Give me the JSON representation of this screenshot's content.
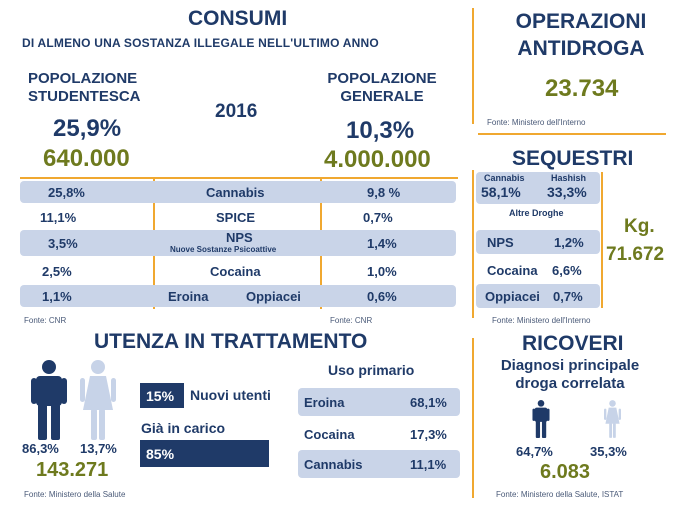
{
  "consumi": {
    "title": "CONSUMI",
    "subtitle": "DI ALMENO UNA SOSTANZA ILLEGALE NELL'ULTIMO ANNO",
    "year": "2016",
    "studenti": {
      "label1": "POPOLAZIONE",
      "label2": "STUDENTESCA",
      "pct": "25,9%",
      "count": "640.000"
    },
    "generale": {
      "label1": "POPOLAZIONE",
      "label2": "GENERALE",
      "pct": "10,3%",
      "count": "4.000.000"
    },
    "rows": [
      {
        "left": "25,8%",
        "name": "Cannabis",
        "sub": "",
        "right": "9,8 %"
      },
      {
        "left": "11,1%",
        "name": "SPICE",
        "sub": "",
        "right": "0,7%"
      },
      {
        "left": "3,5%",
        "name": "NPS",
        "sub": "Nuove Sostanze Psicoattive",
        "right": "1,4%"
      },
      {
        "left": "2,5%",
        "name": "Cocaina",
        "sub": "",
        "right": "1,0%"
      },
      {
        "left": "1,1%",
        "name": "Eroina",
        "name2": "Oppiacei",
        "sub": "",
        "right": "0,6%"
      }
    ],
    "source_left": "Fonte: CNR",
    "source_right": "Fonte: CNR"
  },
  "operazioni": {
    "title1": "OPERAZIONI",
    "title2": "ANTIDROGA",
    "value": "23.734",
    "source": "Fonte: Ministero dell'Interno"
  },
  "sequestri": {
    "title": "SEQUESTRI",
    "cannabis_label": "Cannabis",
    "cannabis_pct": "58,1%",
    "hashish_label": "Hashish",
    "hashish_pct": "33,3%",
    "altre_label": "Altre Droghe",
    "rows": [
      {
        "name": "NPS",
        "pct": "1,2%"
      },
      {
        "name": "Cocaina",
        "pct": "6,6%"
      },
      {
        "name": "Oppiacei",
        "pct": "0,7%"
      }
    ],
    "kg_label": "Kg.",
    "kg_value": "71.672",
    "source": "Fonte: Ministero dell'Interno"
  },
  "utenza": {
    "title": "UTENZA IN TRATTAMENTO",
    "male_pct": "86,3%",
    "female_pct": "13,7%",
    "total": "143.271",
    "nuovi_pct": "15%",
    "nuovi_label": "Nuovi utenti",
    "nuovi_fraction": 0.15,
    "carico_label": "Già in carico",
    "carico_pct": "85%",
    "carico_fraction": 0.85,
    "uso_title": "Uso primario",
    "uso": [
      {
        "name": "Eroina",
        "pct": "68,1%"
      },
      {
        "name": "Cocaina",
        "pct": "17,3%"
      },
      {
        "name": "Cannabis",
        "pct": "11,1%"
      }
    ],
    "source": "Fonte: Ministero della Salute"
  },
  "ricoveri": {
    "title": "RICOVERI",
    "subtitle1": "Diagnosi principale",
    "subtitle2": "droga correlata",
    "male_pct": "64,7%",
    "female_pct": "35,3%",
    "total": "6.083",
    "source": "Fonte: Ministero della Salute, ISTAT"
  },
  "colors": {
    "navy": "#1f3a68",
    "olive": "#6e7a1e",
    "accent_orange": "#f0a830",
    "row_shade": "#c9d4e8",
    "female_figure": "#c7d3e8"
  },
  "icons": [
    "male-figure-icon",
    "female-figure-icon"
  ]
}
